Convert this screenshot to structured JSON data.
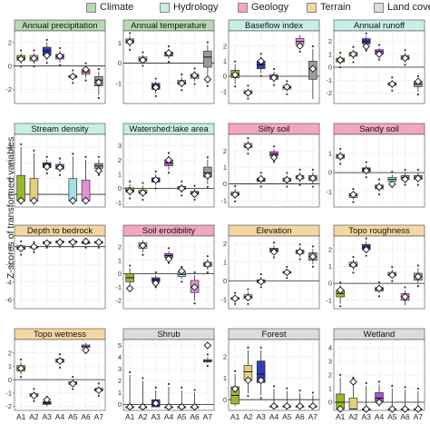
{
  "legend": {
    "items": [
      {
        "label": "Climate",
        "color": "#b7d8b0"
      },
      {
        "label": "Hydrology",
        "color": "#c7efe8"
      },
      {
        "label": "Geology",
        "color": "#f2a7bf"
      },
      {
        "label": "Terrain",
        "color": "#f4d7a1"
      },
      {
        "label": "Land cover",
        "color": "#dcdcdc"
      }
    ]
  },
  "y_axis_label": "Z-scores of transformed variables",
  "chart_data": {
    "type": "box",
    "categories": [
      "A1",
      "A2",
      "A3",
      "A4",
      "A5",
      "A6",
      "A7"
    ],
    "category_colors": [
      "#9bb82e",
      "#e3d07a",
      "#2f3eb3",
      "#b14fd1",
      "#9fe3ea",
      "#e78fd6",
      "#9b9b9b"
    ],
    "panels": [
      {
        "title": "Annual precipitation",
        "group": "Climate",
        "yticks": [
          -2,
          0,
          2
        ],
        "ylim": [
          -3.2,
          3.0
        ],
        "stats": [
          [
            0.2,
            0.5,
            0.7,
            0.9,
            1.1
          ],
          [
            0.2,
            0.45,
            0.7,
            0.9,
            1.1
          ],
          [
            0.5,
            0.9,
            1.3,
            1.6,
            2.0
          ],
          [
            0.3,
            0.6,
            0.8,
            1.0,
            1.3
          ],
          [
            -1.2,
            -1.0,
            -0.9,
            -0.8,
            -0.6
          ],
          [
            -1.0,
            -0.7,
            -0.5,
            -0.3,
            0.0
          ],
          [
            -2.5,
            -1.7,
            -1.2,
            -0.9,
            -0.5
          ]
        ],
        "means": [
          0.6,
          0.65,
          0.9,
          0.85,
          -0.9,
          -0.3,
          -1.4
        ]
      },
      {
        "title": "Annual temperature",
        "group": "Climate",
        "yticks": [
          -1,
          0,
          1
        ],
        "ylim": [
          -2.0,
          1.6
        ],
        "stats": [
          [
            0.8,
            1.0,
            1.1,
            1.2,
            1.35
          ],
          [
            0.0,
            0.1,
            0.2,
            0.3,
            0.4
          ],
          [
            -1.5,
            -1.3,
            -1.15,
            -1.0,
            -0.9
          ],
          [
            0.2,
            0.35,
            0.45,
            0.55,
            0.7
          ],
          [
            -1.2,
            -1.05,
            -0.95,
            -0.85,
            -0.7
          ],
          [
            -0.9,
            -0.75,
            -0.65,
            -0.55,
            -0.4
          ],
          [
            -1.0,
            -0.2,
            0.3,
            0.6,
            0.9
          ]
        ],
        "means": [
          1.05,
          0.15,
          -1.2,
          0.5,
          -1.0,
          -0.6,
          -0.8
        ]
      },
      {
        "title": "Baseflow index",
        "group": "Hydrology",
        "yticks": [
          -1,
          0,
          1,
          2
        ],
        "ylim": [
          -1.8,
          3.0
        ],
        "stats": [
          [
            -0.5,
            -0.1,
            0.15,
            0.4,
            0.8
          ],
          [
            -1.3,
            -1.15,
            -1.05,
            -0.95,
            -0.8
          ],
          [
            0.2,
            0.5,
            0.75,
            1.0,
            1.3
          ],
          [
            -0.4,
            -0.2,
            -0.05,
            0.1,
            0.3
          ],
          [
            -1.0,
            -0.85,
            -0.75,
            -0.65,
            -0.5
          ],
          [
            1.8,
            2.1,
            2.3,
            2.5,
            2.7
          ],
          [
            -1.5,
            -0.2,
            0.5,
            1.0,
            1.8
          ]
        ],
        "means": [
          0.1,
          -1.1,
          1.0,
          -0.1,
          -0.7,
          2.0,
          0.5
        ]
      },
      {
        "title": "Annual runoff",
        "group": "Hydrology",
        "yticks": [
          -2,
          -1,
          0,
          1,
          2
        ],
        "ylim": [
          -2.8,
          2.8
        ],
        "stats": [
          [
            0.2,
            0.4,
            0.55,
            0.7,
            0.9
          ],
          [
            0.6,
            0.85,
            1.0,
            1.15,
            1.35
          ],
          [
            1.5,
            1.8,
            2.0,
            2.2,
            2.4
          ],
          [
            0.8,
            1.0,
            1.2,
            1.35,
            1.5
          ],
          [
            -1.6,
            -1.4,
            -1.3,
            -1.2,
            -1.0
          ],
          [
            0.4,
            0.6,
            0.75,
            0.9,
            1.1
          ],
          [
            -1.9,
            -1.5,
            -1.3,
            -1.1,
            -0.9
          ]
        ],
        "means": [
          0.55,
          1.0,
          1.6,
          1.0,
          -1.3,
          0.7,
          -1.1
        ]
      },
      {
        "title": "Stream density",
        "group": "Hydrology",
        "yticks": [
          0,
          1,
          2,
          3
        ],
        "ylim": [
          -0.8,
          3.8
        ],
        "stats": [
          [
            -0.4,
            -0.4,
            -0.4,
            1.2,
            3.0
          ],
          [
            -0.4,
            -0.4,
            -0.4,
            1.0,
            2.6
          ],
          [
            1.5,
            1.7,
            1.85,
            2.0,
            2.2
          ],
          [
            1.4,
            1.6,
            1.75,
            1.9,
            2.1
          ],
          [
            -0.4,
            -0.4,
            -0.4,
            1.0,
            2.4
          ],
          [
            -0.4,
            -0.4,
            -0.4,
            0.9,
            2.2
          ],
          [
            1.4,
            1.65,
            1.8,
            1.95,
            2.2
          ]
        ],
        "means": [
          -0.4,
          -0.4,
          1.75,
          1.7,
          -0.4,
          -0.4,
          1.5
        ]
      },
      {
        "title": "Watershed:lake area",
        "group": "Hydrology",
        "yticks": [
          -1,
          0,
          1,
          2,
          3
        ],
        "ylim": [
          -1.3,
          3.8
        ],
        "stats": [
          [
            -0.5,
            -0.25,
            -0.1,
            0.05,
            0.3
          ],
          [
            -0.6,
            -0.35,
            -0.25,
            -0.1,
            0.2
          ],
          [
            0.2,
            0.45,
            0.6,
            0.75,
            1.0
          ],
          [
            1.3,
            1.6,
            1.8,
            2.0,
            2.3
          ],
          [
            -0.3,
            -0.05,
            0.05,
            0.15,
            0.3
          ],
          [
            -0.6,
            -0.4,
            -0.3,
            -0.2,
            0.0
          ],
          [
            0.3,
            0.8,
            1.1,
            1.5,
            2.0
          ]
        ],
        "means": [
          -0.2,
          -0.3,
          0.6,
          2.0,
          0.0,
          -0.4,
          0.9
        ]
      },
      {
        "title": "Silty soil",
        "group": "Geology",
        "yticks": [
          -1,
          0,
          1,
          2
        ],
        "ylim": [
          -1.4,
          3.0
        ],
        "stats": [
          [
            -0.9,
            -0.7,
            -0.6,
            -0.5,
            -0.3
          ],
          [
            2.0,
            2.2,
            2.3,
            2.45,
            2.6
          ],
          [
            0.0,
            0.15,
            0.25,
            0.35,
            0.5
          ],
          [
            1.5,
            1.7,
            1.8,
            1.95,
            2.1
          ],
          [
            0.0,
            0.15,
            0.25,
            0.35,
            0.5
          ],
          [
            0.1,
            0.3,
            0.4,
            0.5,
            0.7
          ],
          [
            0.0,
            0.2,
            0.35,
            0.5,
            0.7
          ]
        ],
        "means": [
          -0.65,
          2.3,
          0.3,
          1.6,
          0.25,
          0.4,
          0.35
        ]
      },
      {
        "title": "Sandy soil",
        "group": "Geology",
        "yticks": [
          -1,
          0,
          1
        ],
        "ylim": [
          -1.8,
          2.0
        ],
        "stats": [
          [
            0.6,
            0.75,
            0.85,
            0.95,
            1.1
          ],
          [
            -1.4,
            -1.3,
            -1.2,
            -1.1,
            -1.0
          ],
          [
            -0.1,
            0.05,
            0.15,
            0.25,
            0.4
          ],
          [
            -1.0,
            -0.85,
            -0.75,
            -0.65,
            -0.5
          ],
          [
            -0.6,
            -0.45,
            -0.35,
            -0.25,
            -0.1
          ],
          [
            -0.5,
            -0.35,
            -0.25,
            -0.15,
            0.0
          ],
          [
            -0.5,
            -0.35,
            -0.25,
            -0.15,
            0.0
          ]
        ],
        "means": [
          0.85,
          -1.15,
          0.1,
          -0.75,
          -0.6,
          -0.35,
          -0.3
        ]
      },
      {
        "title": "Depth to bedrock",
        "group": "Terrain",
        "yticks": [
          -6,
          -4,
          -2,
          0
        ],
        "ylim": [
          -7.0,
          1.2
        ],
        "stats": [
          [
            -0.6,
            -0.3,
            -0.1,
            0.1,
            0.3
          ],
          [
            -0.3,
            -0.15,
            -0.05,
            0.05,
            0.2
          ],
          [
            0.2,
            0.35,
            0.45,
            0.55,
            0.7
          ],
          [
            0.3,
            0.45,
            0.55,
            0.65,
            0.8
          ],
          [
            0.3,
            0.45,
            0.55,
            0.65,
            0.8
          ],
          [
            0.2,
            0.35,
            0.45,
            0.55,
            0.7
          ],
          [
            0.2,
            0.4,
            0.5,
            0.6,
            0.75
          ]
        ],
        "means": [
          -0.2,
          0.0,
          0.4,
          0.5,
          0.5,
          0.6,
          0.5
        ]
      },
      {
        "title": "Soil erodibility",
        "group": "Geology",
        "yticks": [
          -2,
          -1,
          0,
          1,
          2
        ],
        "ylim": [
          -2.6,
          2.8
        ],
        "stats": [
          [
            -1.0,
            -0.6,
            -0.3,
            0.0,
            0.4
          ],
          [
            1.6,
            1.9,
            2.1,
            2.3,
            2.5
          ],
          [
            -0.8,
            -0.6,
            -0.45,
            -0.3,
            -0.1
          ],
          [
            1.0,
            1.2,
            1.35,
            1.5,
            1.7
          ],
          [
            -0.4,
            -0.2,
            -0.05,
            0.1,
            0.3
          ],
          [
            -2.0,
            -1.4,
            -1.0,
            -0.5,
            -0.1
          ],
          [
            0.3,
            0.55,
            0.7,
            0.85,
            1.1
          ]
        ],
        "means": [
          -1.1,
          2.1,
          -0.7,
          1.1,
          0.2,
          -1.0,
          0.7
        ]
      },
      {
        "title": "Elevation",
        "group": "Terrain",
        "yticks": [
          -1,
          0,
          1,
          2
        ],
        "ylim": [
          -1.5,
          2.4
        ],
        "stats": [
          [
            -1.1,
            -1.0,
            -0.95,
            -0.9,
            -0.8
          ],
          [
            -1.1,
            -0.95,
            -0.85,
            -0.75,
            -0.6
          ],
          [
            -0.2,
            -0.1,
            -0.05,
            0.05,
            0.2
          ],
          [
            1.4,
            1.55,
            1.65,
            1.75,
            1.9
          ],
          [
            0.3,
            0.4,
            0.45,
            0.5,
            0.6
          ],
          [
            1.3,
            1.45,
            1.55,
            1.65,
            1.8
          ],
          [
            0.9,
            1.1,
            1.3,
            1.5,
            1.7
          ]
        ],
        "means": [
          -0.95,
          -0.9,
          -0.05,
          1.55,
          0.45,
          1.55,
          1.3
        ]
      },
      {
        "title": "Topo roughness",
        "group": "Terrain",
        "yticks": [
          -1,
          0,
          1,
          2
        ],
        "ylim": [
          -1.5,
          2.8
        ],
        "stats": [
          [
            -1.2,
            -0.8,
            -0.6,
            -0.4,
            -0.1
          ],
          [
            0.8,
            1.0,
            1.1,
            1.25,
            1.4
          ],
          [
            1.8,
            2.0,
            2.15,
            2.3,
            2.5
          ],
          [
            -0.6,
            -0.45,
            -0.35,
            -0.25,
            -0.1
          ],
          [
            0.3,
            0.45,
            0.55,
            0.65,
            0.8
          ],
          [
            -1.3,
            -1.0,
            -0.8,
            -0.6,
            -0.4
          ],
          [
            0.0,
            0.2,
            0.4,
            0.6,
            0.9
          ]
        ],
        "means": [
          -0.4,
          1.1,
          2.0,
          -0.3,
          0.5,
          -0.8,
          0.4
        ]
      },
      {
        "title": "Topo wetness",
        "group": "Terrain",
        "yticks": [
          -2,
          -1,
          0,
          1,
          2
        ],
        "ylim": [
          -2.3,
          3.0
        ],
        "stats": [
          [
            0.4,
            0.65,
            0.85,
            1.05,
            1.3
          ],
          [
            -1.4,
            -1.25,
            -1.15,
            -1.05,
            -0.9
          ],
          [
            -2.0,
            -1.85,
            -1.75,
            -1.65,
            -1.5
          ],
          [
            1.1,
            1.3,
            1.4,
            1.55,
            1.7
          ],
          [
            -0.5,
            -0.35,
            -0.25,
            -0.15,
            0.0
          ],
          [
            2.2,
            2.4,
            2.5,
            2.6,
            2.75
          ],
          [
            -1.0,
            -0.85,
            -0.75,
            -0.65,
            -0.5
          ]
        ],
        "means": [
          0.85,
          -1.2,
          -1.5,
          1.4,
          -0.3,
          2.2,
          -0.8
        ]
      },
      {
        "title": "Shrub",
        "group": "Land cover",
        "yticks": [
          0,
          1,
          2,
          3,
          4,
          5
        ],
        "ylim": [
          -0.5,
          5.5
        ],
        "stats": [
          [
            -0.2,
            -0.2,
            -0.2,
            -0.2,
            2.5
          ],
          [
            -0.2,
            -0.2,
            -0.2,
            -0.2,
            2.0
          ],
          [
            -0.2,
            -0.2,
            -0.1,
            0.4,
            1.2
          ],
          [
            -0.2,
            -0.2,
            -0.2,
            -0.2,
            1.5
          ],
          [
            -0.2,
            -0.2,
            -0.2,
            -0.2,
            1.2
          ],
          [
            -0.2,
            -0.2,
            -0.2,
            -0.2,
            1.0
          ],
          [
            3.5,
            3.6,
            3.7,
            3.8,
            4.0
          ]
        ],
        "means": [
          -0.2,
          -0.2,
          0.1,
          -0.2,
          -0.2,
          -0.2,
          5.0
        ]
      },
      {
        "title": "Forest",
        "group": "Land cover",
        "yticks": [
          0,
          1,
          2
        ],
        "ylim": [
          -0.5,
          2.8
        ],
        "stats": [
          [
            -0.3,
            -0.2,
            0.2,
            0.6,
            1.2
          ],
          [
            0.3,
            0.9,
            1.3,
            1.6,
            2.3
          ],
          [
            0.2,
            0.8,
            1.2,
            1.8,
            2.3
          ],
          [
            -0.3,
            -0.3,
            -0.3,
            -0.3,
            0.5
          ],
          [
            -0.3,
            -0.3,
            -0.3,
            -0.3,
            0.4
          ],
          [
            -0.3,
            -0.3,
            -0.3,
            -0.3,
            0.3
          ],
          [
            -0.3,
            -0.3,
            -0.3,
            -0.3,
            0.2
          ]
        ],
        "means": [
          0.5,
          0.9,
          0.9,
          -0.3,
          -0.3,
          -0.3,
          -0.3
        ]
      },
      {
        "title": "Wetland",
        "group": "Land cover",
        "yticks": [
          0,
          1,
          2,
          3,
          4
        ],
        "ylim": [
          -0.6,
          4.6
        ],
        "stats": [
          [
            -0.5,
            -0.5,
            0.0,
            0.6,
            1.8
          ],
          [
            -0.5,
            -0.5,
            -0.5,
            0.3,
            1.6
          ],
          [
            -0.5,
            -0.5,
            -0.5,
            -0.5,
            1.2
          ],
          [
            -0.3,
            0.0,
            0.3,
            0.7,
            1.3
          ],
          [
            -0.5,
            -0.5,
            -0.5,
            -0.5,
            1.0
          ],
          [
            -0.5,
            -0.5,
            -0.5,
            -0.5,
            0.9
          ],
          [
            -0.5,
            -0.5,
            -0.5,
            -0.5,
            0.8
          ]
        ],
        "means": [
          -0.5,
          1.5,
          -0.5,
          0.0,
          -0.5,
          -0.5,
          -0.5
        ]
      }
    ]
  }
}
